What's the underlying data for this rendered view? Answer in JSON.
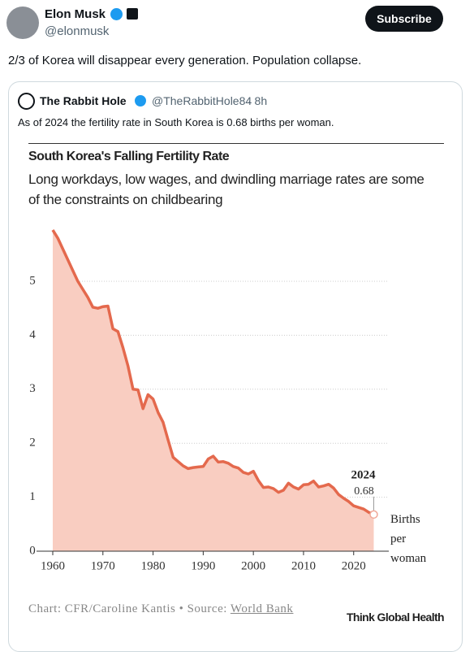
{
  "tweet": {
    "name": "Elon Musk",
    "handle": "@elonmusk",
    "button": "Subscribe",
    "text": "2/3 of Korea will disappear every generation. Population collapse."
  },
  "quote": {
    "name": "The Rabbit Hole",
    "handle": "@TheRabbitHole84",
    "time": "· 8h",
    "text": "As of 2024 the fertility rate in South Korea is 0.68 births per woman."
  },
  "chart_data": {
    "type": "area",
    "title": "South Korea's Falling Fertility Rate",
    "subtitle": "Long workdays, low wages, and dwindling marriage rates are some of the constraints on childbearing",
    "x": [
      1960,
      1961,
      1962,
      1963,
      1964,
      1965,
      1966,
      1967,
      1968,
      1969,
      1970,
      1971,
      1972,
      1973,
      1974,
      1975,
      1976,
      1977,
      1978,
      1979,
      1980,
      1981,
      1982,
      1983,
      1984,
      1985,
      1986,
      1987,
      1988,
      1989,
      1990,
      1991,
      1992,
      1993,
      1994,
      1995,
      1996,
      1997,
      1998,
      1999,
      2000,
      2001,
      2002,
      2003,
      2004,
      2005,
      2006,
      2007,
      2008,
      2009,
      2010,
      2011,
      2012,
      2013,
      2014,
      2015,
      2016,
      2017,
      2018,
      2019,
      2020,
      2021,
      2022,
      2023,
      2024
    ],
    "values": [
      5.95,
      5.8,
      5.6,
      5.4,
      5.2,
      5.0,
      4.85,
      4.7,
      4.52,
      4.5,
      4.53,
      4.54,
      4.12,
      4.07,
      3.77,
      3.43,
      3.0,
      2.99,
      2.64,
      2.9,
      2.82,
      2.57,
      2.39,
      2.06,
      1.74,
      1.66,
      1.58,
      1.53,
      1.55,
      1.56,
      1.57,
      1.71,
      1.76,
      1.65,
      1.66,
      1.63,
      1.57,
      1.54,
      1.46,
      1.43,
      1.48,
      1.31,
      1.18,
      1.19,
      1.16,
      1.09,
      1.13,
      1.26,
      1.19,
      1.15,
      1.23,
      1.24,
      1.3,
      1.19,
      1.21,
      1.24,
      1.17,
      1.05,
      0.98,
      0.92,
      0.84,
      0.81,
      0.78,
      0.72,
      0.68
    ],
    "color": "#e4694d",
    "area_color": "#f9cdc1",
    "xlim": [
      1960,
      2027
    ],
    "xticks": [
      1960,
      1970,
      1980,
      1990,
      2000,
      2010,
      2020
    ],
    "ylim": [
      0,
      6
    ],
    "yticks": [
      0,
      1,
      2,
      3,
      4,
      5
    ],
    "grid": true,
    "unit_label": "Births per woman",
    "source_prefix": "Chart: CFR/Caroline Kantis • Source: ",
    "source_link": "World Bank",
    "logo": "Think Global Health"
  }
}
